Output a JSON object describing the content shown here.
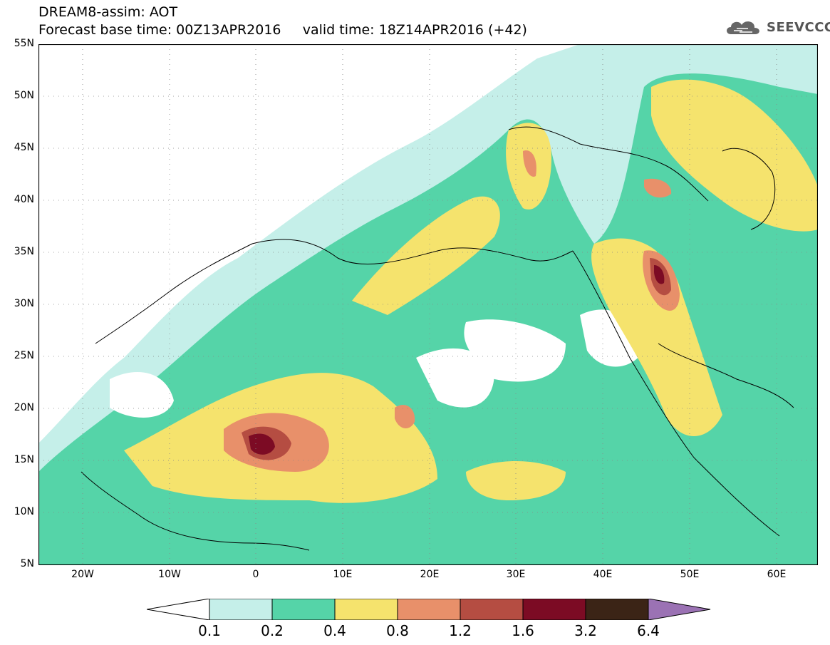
{
  "header": {
    "title_line1": "DREAM8-assim: AOT",
    "title_line2": "Forecast base time: 00Z13APR2016     valid time: 18Z14APR2016 (+42)",
    "logo_text": "SEEVCCC"
  },
  "map": {
    "lat_labels": [
      "55N",
      "50N",
      "45N",
      "40N",
      "35N",
      "30N",
      "25N",
      "20N",
      "15N",
      "10N",
      "5N"
    ],
    "lon_labels": [
      "20W",
      "10W",
      "0",
      "10E",
      "20E",
      "30E",
      "40E",
      "50E",
      "60E"
    ],
    "colors": {
      "c0": "#c5efe9",
      "c1": "#55d4a8",
      "c2": "#f5e36d",
      "c3": "#e8906a",
      "c4": "#b54d42",
      "c5": "#7c0b24",
      "c6": "#3b2416",
      "c7": "#9b72b4"
    }
  },
  "colorbar": {
    "labels": [
      "0.1",
      "0.2",
      "0.4",
      "0.8",
      "1.2",
      "1.6",
      "3.2",
      "6.4"
    ],
    "colors": [
      "#ffffff",
      "#c5efe9",
      "#55d4a8",
      "#f5e36d",
      "#e8906a",
      "#b54d42",
      "#7c0b24",
      "#3b2416",
      "#9b72b4"
    ]
  }
}
